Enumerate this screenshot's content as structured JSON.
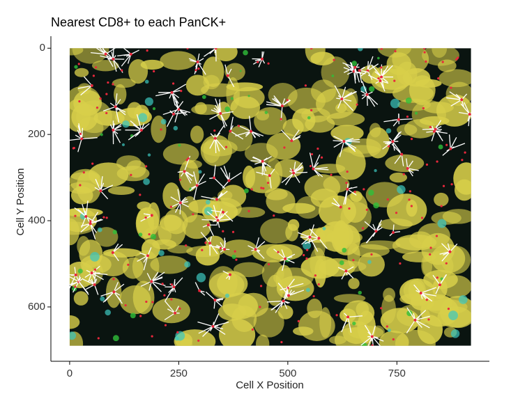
{
  "chart_data": {
    "type": "raster",
    "title": "Nearest CD8+ to each PanCK+",
    "x_label": "Cell X Position",
    "y_label": "Cell Y Position",
    "xlim": [
      -43,
      962
    ],
    "xticks": [
      0,
      250,
      500,
      750
    ],
    "ylim": [
      -23,
      726
    ],
    "yticks": [
      0,
      200,
      400,
      600
    ],
    "y_reverse": true,
    "image_xlim": [
      0,
      920
    ],
    "image_ylim": [
      0,
      690
    ],
    "background_color": "#0a1410",
    "tissue_color": "#d8cf4a",
    "cell_color": "#e8283c",
    "link_color": "#ffffff"
  }
}
